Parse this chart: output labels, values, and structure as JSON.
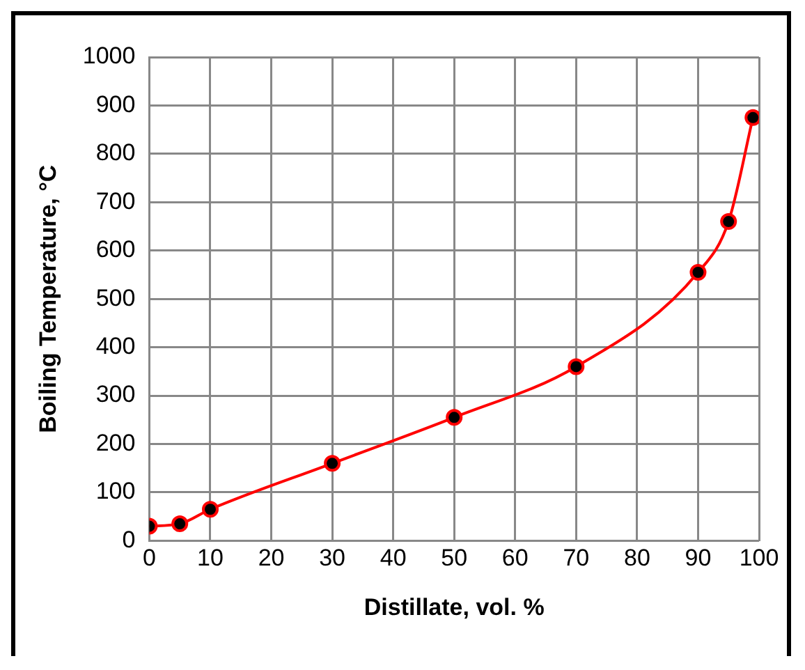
{
  "chart_data": {
    "type": "line",
    "xlabel": "Distillate, vol. %",
    "ylabel": "Boiling Temperature, °C",
    "x": [
      0,
      5,
      10,
      30,
      50,
      70,
      90,
      95,
      99
    ],
    "series": [
      {
        "color": "#ff0000",
        "values": [
          30,
          35,
          65,
          160,
          255,
          360,
          555,
          660,
          875
        ]
      }
    ],
    "xlim": [
      0,
      100
    ],
    "xticks": [
      0,
      10,
      20,
      30,
      40,
      50,
      60,
      70,
      80,
      90,
      100
    ],
    "ylim": [
      0,
      1000
    ],
    "yticks": [
      0,
      100,
      200,
      300,
      400,
      500,
      600,
      700,
      800,
      900,
      1000
    ],
    "grid": true,
    "legend": false,
    "marker": "circle",
    "line_style": "solid"
  }
}
